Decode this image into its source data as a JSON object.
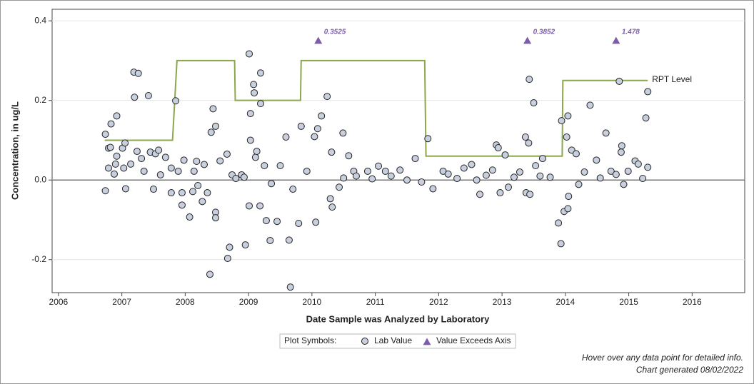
{
  "chart_data": {
    "type": "scatter",
    "x_label": "Date Sample was Analyzed by Laboratory",
    "y_label": "Concentration, in ug/L",
    "xlim": [
      2005.9,
      2016.83
    ],
    "ylim": [
      -0.283,
      0.429
    ],
    "xticks": [
      2006,
      2007,
      2008,
      2009,
      2010,
      2011,
      2012,
      2013,
      2014,
      2015,
      2016
    ],
    "yticks": [
      -0.2,
      {
        "value": 0,
        "label": "0.0"
      },
      0.2,
      0.4
    ],
    "grid": true,
    "reference_line_y": 0,
    "legend": {
      "title": "Plot Symbols:",
      "position": "bottom"
    },
    "notes": [
      "Hover over any data point for detailed info.",
      "Chart generated 08/02/2022"
    ],
    "series": [
      {
        "name": "Lab Value",
        "type": "scatter",
        "color": "#c8d0e0",
        "x": [
          2006.74,
          2006.74,
          2006.79,
          2006.82,
          2006.83,
          2006.79,
          2006.88,
          2006.9,
          2006.92,
          2006.92,
          2007.01,
          2007.05,
          2007.03,
          2007.06,
          2007.14,
          2007.19,
          2007.26,
          2007.2,
          2007.24,
          2007.31,
          2007.35,
          2007.42,
          2007.45,
          2007.5,
          2007.53,
          2007.58,
          2007.61,
          2007.69,
          2007.78,
          2007.78,
          2007.85,
          2007.89,
          2007.95,
          2007.95,
          2007.98,
          2008.07,
          2008.12,
          2008.14,
          2008.18,
          2008.2,
          2008.27,
          2008.3,
          2008.35,
          2008.39,
          2008.41,
          2008.44,
          2008.48,
          2008.48,
          2008.48,
          2008.55,
          2008.66,
          2008.67,
          2008.7,
          2008.74,
          2008.8,
          2008.89,
          2008.93,
          2008.95,
          2009.01,
          2009.01,
          2009.03,
          2009.03,
          2009.08,
          2009.09,
          2009.11,
          2009.13,
          2009.19,
          2009.19,
          2009.18,
          2009.25,
          2009.28,
          2009.34,
          2009.36,
          2009.45,
          2009.5,
          2009.59,
          2009.64,
          2009.66,
          2009.7,
          2009.79,
          2009.83,
          2009.92,
          2010.04,
          2010.06,
          2010.09,
          2010.15,
          2010.24,
          2010.29,
          2010.31,
          2010.32,
          2010.49,
          2010.43,
          2010.58,
          2010.66,
          2010.88,
          2011.16,
          2011.39,
          2011.63,
          2011.73,
          2011.83,
          2011.91,
          2012.07,
          2012.29,
          2012.52,
          2012.65,
          2012.85,
          2012.91,
          2012.94,
          2012.97,
          2013.05,
          2013.1,
          2013.19,
          2013.37,
          2013.38,
          2013.42,
          2013.43,
          2013.44,
          2013.5,
          2013.53,
          2013.64,
          2013.76,
          2013.89,
          2013.93,
          2013.94,
          2013.98,
          2014.02,
          2014.04,
          2014.04,
          2014.05,
          2014.1,
          2014.17,
          2014.21,
          2014.39,
          2014.49,
          2014.64,
          2014.72,
          2014.8,
          2014.85,
          2014.88,
          2014.89,
          2014.92,
          2014.99,
          2015.1,
          2015.22,
          2015.27,
          2015.3,
          2015.3,
          2010.5,
          2010.7,
          2010.95,
          2011.05,
          2011.25,
          2011.5,
          2012.15,
          2012.4,
          2012.6,
          2012.75,
          2013.28,
          2013.6,
          2014.3,
          2014.55,
          2015.15
        ],
        "values": [
          0.115,
          -0.027,
          0.08,
          0.082,
          0.141,
          0.03,
          0.015,
          0.04,
          0.161,
          0.06,
          0.08,
          0.093,
          0.03,
          -0.022,
          0.04,
          0.271,
          0.268,
          0.208,
          0.072,
          0.054,
          0.022,
          0.212,
          0.07,
          -0.023,
          0.066,
          0.075,
          0.013,
          0.057,
          0.03,
          -0.032,
          0.199,
          0.022,
          -0.032,
          -0.063,
          0.05,
          -0.093,
          -0.029,
          0.022,
          0.047,
          -0.014,
          -0.054,
          0.039,
          -0.032,
          -0.237,
          0.12,
          0.179,
          0.135,
          -0.081,
          -0.095,
          0.048,
          0.065,
          -0.197,
          -0.169,
          0.013,
          0.004,
          0.013,
          0.007,
          -0.163,
          0.317,
          -0.065,
          0.167,
          0.1,
          0.24,
          0.219,
          0.057,
          0.072,
          0.269,
          0.192,
          -0.065,
          0.036,
          -0.102,
          -0.152,
          -0.009,
          -0.104,
          0.036,
          0.108,
          -0.151,
          -0.269,
          -0.023,
          -0.109,
          0.135,
          0.022,
          0.109,
          -0.106,
          0.129,
          0.161,
          0.21,
          -0.047,
          0.07,
          -0.068,
          0.118,
          -0.018,
          0.061,
          0.022,
          0.022,
          0.022,
          0.025,
          0.054,
          -0.005,
          0.104,
          -0.022,
          0.022,
          0.004,
          0.039,
          -0.036,
          0.025,
          0.088,
          0.081,
          -0.032,
          0.063,
          -0.018,
          0.007,
          0.108,
          -0.032,
          0.093,
          0.253,
          -0.036,
          0.194,
          0.036,
          0.054,
          0.007,
          -0.108,
          -0.16,
          0.149,
          -0.079,
          0.108,
          0.161,
          -0.072,
          -0.041,
          0.075,
          0.066,
          -0.011,
          0.188,
          0.05,
          0.118,
          0.022,
          0.014,
          0.248,
          0.07,
          0.086,
          -0.011,
          0.022,
          0.048,
          0.004,
          0.156,
          0.222,
          0.032,
          0.005,
          0.01,
          0.003,
          0.035,
          0.01,
          0.0,
          0.015,
          0.03,
          0.0,
          0.012,
          0.02,
          0.01,
          0.02,
          0.005,
          0.04
        ]
      },
      {
        "name": "RPT Level",
        "type": "line",
        "color": "#8aa84b",
        "x": [
          2006.73,
          2007.8,
          2007.87,
          2008.78,
          2008.79,
          2009.82,
          2009.83,
          2011.78,
          2011.8,
          2013.95,
          2013.96,
          2015.3
        ],
        "values": [
          0.1,
          0.1,
          0.3,
          0.3,
          0.2,
          0.2,
          0.3,
          0.3,
          0.06,
          0.06,
          0.25,
          0.25
        ]
      },
      {
        "name": "Value Exceeds Axis",
        "type": "exceeds",
        "color": "#7b5ea7",
        "x": [
          2010.1,
          2013.4,
          2014.8
        ],
        "values": [
          0.3525,
          0.3852,
          1.478
        ],
        "value_labels": [
          "0.3525",
          "0.3852",
          "1.478"
        ]
      }
    ]
  }
}
